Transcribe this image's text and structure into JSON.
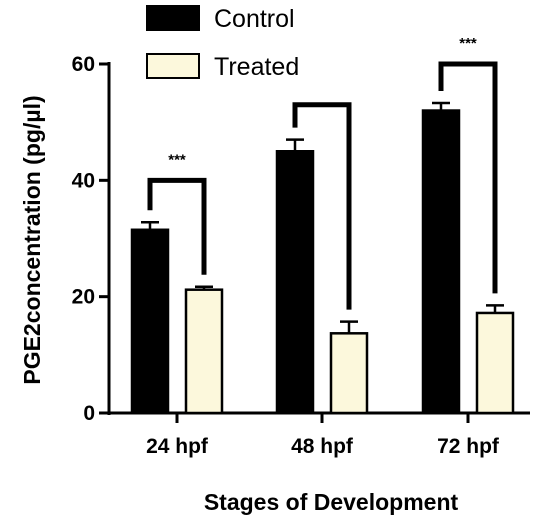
{
  "chart_data": {
    "type": "bar",
    "xlabel": "Stages of Development",
    "ylabel": "PGE2concentration (pg/µl)",
    "ylim": [
      0,
      60
    ],
    "yticks": [
      0,
      20,
      40,
      60
    ],
    "categories": [
      "24 hpf",
      "48 hpf",
      "72 hpf"
    ],
    "series": [
      {
        "name": "Control",
        "values": [
          31.5,
          45,
          52
        ],
        "errors": [
          1.3,
          2.0,
          1.3
        ],
        "color": "#000000"
      },
      {
        "name": "Treated",
        "values": [
          21.2,
          13.7,
          17.2
        ],
        "errors": [
          0.5,
          2.0,
          1.3
        ],
        "color": "#fcf8dc"
      }
    ],
    "significance": [
      {
        "category": "24 hpf",
        "label": "***",
        "bracket_top": 40
      },
      {
        "category": "48 hpf",
        "label": "",
        "bracket_top": 53
      },
      {
        "category": "72 hpf",
        "label": "***",
        "bracket_top": 60
      }
    ],
    "legend_position": "top-left",
    "grid": false
  }
}
